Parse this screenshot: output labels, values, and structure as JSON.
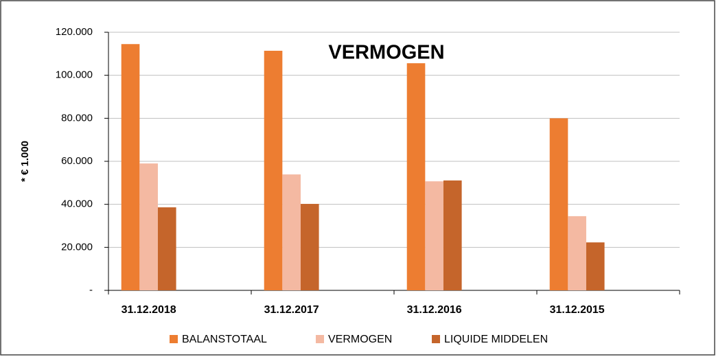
{
  "chart_data": {
    "type": "bar",
    "title": "VERMOGEN",
    "y_label": "* € 1.000",
    "categories": [
      "31.12.2018",
      "31.12.2017",
      "31.12.2016",
      "31.12.2015"
    ],
    "series": [
      {
        "name": "BALANSTOTAAL",
        "color": "#ed7d31",
        "values": [
          114500,
          111400,
          105600,
          80000
        ]
      },
      {
        "name": "VERMOGEN",
        "color": "#f4b9a2",
        "values": [
          59000,
          53900,
          50700,
          34500
        ]
      },
      {
        "name": "LIQUIDE MIDDELEN",
        "color": "#c5652b",
        "values": [
          38600,
          40200,
          51100,
          22300
        ]
      }
    ],
    "ylim": [
      0,
      120000
    ],
    "yticks": [
      {
        "value": 0,
        "label": "-"
      },
      {
        "value": 20000,
        "label": "20.000"
      },
      {
        "value": 40000,
        "label": "40.000"
      },
      {
        "value": 60000,
        "label": "60.000"
      },
      {
        "value": 80000,
        "label": "80.000"
      },
      {
        "value": 100000,
        "label": "100.000"
      },
      {
        "value": 120000,
        "label": "120.000"
      }
    ],
    "grid": true,
    "legend": "bottom"
  }
}
